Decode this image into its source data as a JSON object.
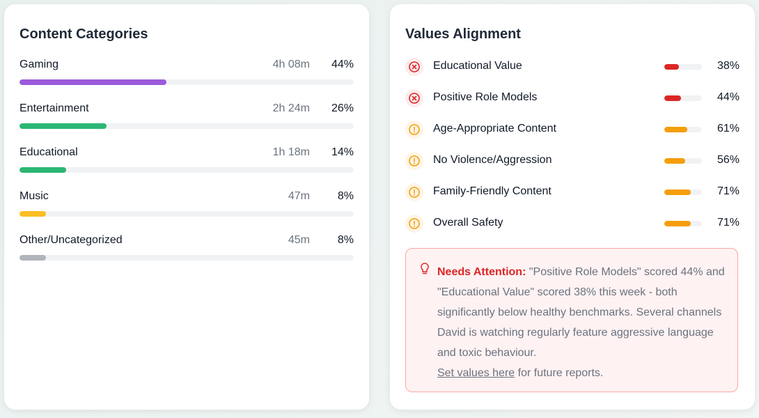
{
  "content_categories": {
    "title": "Content Categories",
    "items": [
      {
        "name": "Gaming",
        "time": "4h 08m",
        "percent": {
          "value": 44,
          "label": "44%"
        },
        "color": "#9b5bdc"
      },
      {
        "name": "Entertainment",
        "time": "2h 24m",
        "percent": {
          "value": 26,
          "label": "26%"
        },
        "color": "#2bb673"
      },
      {
        "name": "Educational",
        "time": "1h 18m",
        "percent": {
          "value": 14,
          "label": "14%"
        },
        "color": "#2bb673"
      },
      {
        "name": "Music",
        "time": "47m",
        "percent": {
          "value": 8,
          "label": "8%"
        },
        "color": "#fbbf24"
      },
      {
        "name": "Other/Uncategorized",
        "time": "45m",
        "percent": {
          "value": 8,
          "label": "8%"
        },
        "color": "#b1b4bc"
      }
    ]
  },
  "values_alignment": {
    "title": "Values Alignment",
    "items": [
      {
        "name": "Educational Value",
        "icon": "x",
        "percent": {
          "value": 38,
          "label": "38%"
        },
        "color": "#dc2626"
      },
      {
        "name": "Positive Role Models",
        "icon": "x",
        "percent": {
          "value": 44,
          "label": "44%"
        },
        "color": "#dc2626"
      },
      {
        "name": "Age-Appropriate Content",
        "icon": "warning",
        "percent": {
          "value": 61,
          "label": "61%"
        },
        "color": "#f59e0b"
      },
      {
        "name": "No Violence/Aggression",
        "icon": "warning",
        "percent": {
          "value": 56,
          "label": "56%"
        },
        "color": "#f59e0b"
      },
      {
        "name": "Family-Friendly Content",
        "icon": "warning",
        "percent": {
          "value": 71,
          "label": "71%"
        },
        "color": "#f59e0b"
      },
      {
        "name": "Overall Safety",
        "icon": "warning",
        "percent": {
          "value": 71,
          "label": "71%"
        },
        "color": "#f59e0b"
      }
    ],
    "alert": {
      "heading": "Needs Attention:",
      "text": " \"Positive Role Models\" scored 44% and \"Educational Value\" scored 38% this week - both significantly below healthy benchmarks. Several channels David is watching regularly feature aggressive language and toxic behaviour.",
      "link": "Set values here",
      "link_suffix": " for future reports."
    }
  }
}
